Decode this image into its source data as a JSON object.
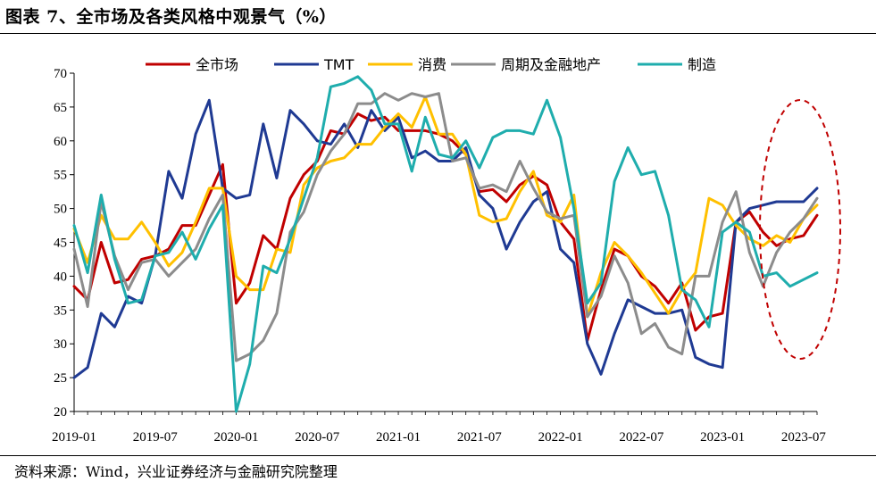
{
  "title": "图表 7、全市场及各类风格中观景气（%）",
  "source": "资料来源：Wind，兴业证券经济与金融研究院整理",
  "chart_data": {
    "type": "line",
    "ylim": [
      20,
      70
    ],
    "yticks": [
      20,
      25,
      30,
      35,
      40,
      45,
      50,
      55,
      60,
      65,
      70
    ],
    "x_tick_labels": [
      "2019-01",
      "2019-07",
      "2020-01",
      "2020-07",
      "2021-01",
      "2021-07",
      "2022-01",
      "2022-07",
      "2023-01",
      "2023-07"
    ],
    "x_tick_indices": [
      0,
      6,
      12,
      18,
      24,
      30,
      36,
      42,
      48,
      54
    ],
    "n_points": 56,
    "legend_position": "top",
    "annotation": "red dashed ellipse highlighting 2023-03 to 2023-08",
    "series": [
      {
        "name": "全市场",
        "color": "#c00000",
        "values": [
          38.5,
          36.5,
          45,
          39,
          39.5,
          42.5,
          43,
          44,
          47.5,
          47.5,
          52,
          56.5,
          36,
          39,
          46,
          44,
          51.5,
          55,
          57,
          61.5,
          61,
          64,
          63,
          63.5,
          61.5,
          61.5,
          61.5,
          61,
          60,
          58,
          52.5,
          52.8,
          51,
          53.5,
          54.8,
          53.5,
          48,
          45.5,
          30.5,
          38,
          44,
          43,
          40,
          38.5,
          36,
          39,
          32,
          34,
          34.5,
          48,
          49.5,
          46.5,
          44.5,
          45.5,
          46,
          49
        ]
      },
      {
        "name": "TMT",
        "color": "#1f3a93",
        "values": [
          25,
          26.5,
          34.5,
          32.5,
          37,
          36,
          43,
          55.5,
          51.5,
          61,
          66,
          53,
          51.5,
          52,
          62.5,
          54.5,
          64.5,
          62.5,
          60,
          59.5,
          62.5,
          59,
          64.5,
          61.5,
          63.5,
          57.5,
          58.5,
          57,
          57,
          59,
          52,
          50,
          44,
          48,
          51,
          52.5,
          44,
          42,
          30,
          25.5,
          31.5,
          36.5,
          35.5,
          34.5,
          34.5,
          35,
          28,
          27,
          26.5,
          48,
          50,
          50.5,
          51,
          51,
          51,
          53
        ]
      },
      {
        "name": "消费",
        "color": "#ffc000",
        "values": [
          47,
          42,
          49,
          45.5,
          45.5,
          48,
          45,
          41.5,
          43.5,
          48,
          53,
          53,
          40,
          38,
          38,
          44,
          43.5,
          53.5,
          56,
          57,
          57.5,
          59.5,
          59.5,
          62,
          64,
          62,
          66.5,
          61,
          61,
          58,
          49,
          48,
          48.5,
          52.5,
          55.5,
          49,
          48,
          52,
          34,
          40.5,
          45,
          43,
          40.5,
          37.5,
          34.5,
          38,
          40.5,
          51.5,
          50.5,
          47.5,
          45.5,
          44.5,
          46,
          45,
          48.5,
          50.5
        ]
      },
      {
        "name": "周期及金融地产",
        "color": "#8c8c8c",
        "values": [
          44,
          35.5,
          51,
          43,
          38,
          42,
          42.5,
          40,
          42,
          44,
          48.5,
          52,
          27.5,
          28.5,
          30.5,
          34.5,
          46.5,
          49.5,
          55,
          58.5,
          61,
          65.5,
          65.5,
          67,
          66,
          67,
          66.5,
          67,
          57,
          57.5,
          53,
          53.5,
          52.5,
          57,
          53,
          49.5,
          48.5,
          49,
          34,
          37,
          43,
          39,
          31.5,
          33,
          29.5,
          28.5,
          40,
          40,
          48,
          52.5,
          43.5,
          38.5,
          43.5,
          46.5,
          48.5,
          51.5
        ]
      },
      {
        "name": "制造",
        "color": "#1fadad",
        "values": [
          47.5,
          40.5,
          52,
          42.5,
          36,
          36.5,
          43,
          43.5,
          46.5,
          42.5,
          47,
          50.5,
          20,
          27,
          41.5,
          40.5,
          45.5,
          51.5,
          57.5,
          68,
          68.5,
          69.5,
          67.5,
          62.5,
          62.5,
          55.5,
          63.5,
          58,
          57.5,
          60,
          56,
          60.5,
          61.5,
          61.5,
          61,
          66,
          60.5,
          50,
          36,
          39,
          54,
          59,
          55,
          55.5,
          49,
          38,
          36.5,
          32.5,
          46.5,
          48,
          46.5,
          40,
          40.5,
          38.5,
          39.5,
          40.5
        ]
      }
    ]
  }
}
